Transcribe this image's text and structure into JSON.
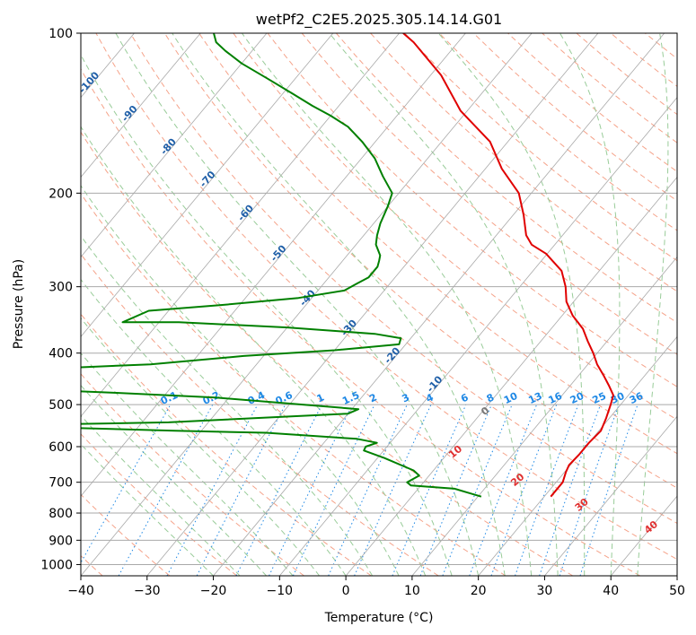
{
  "chart_data": {
    "type": "line",
    "title": "wetPf2_C2E5.2025.305.14.14.G01",
    "xlabel": "Temperature (°C)",
    "ylabel": "Pressure (hPa)",
    "xlim": [
      -40,
      50
    ],
    "ylim": [
      1050,
      100
    ],
    "x_ticks": [
      -40,
      -30,
      -20,
      -10,
      0,
      10,
      20,
      30,
      40,
      50
    ],
    "x_tick_labels": [
      "−40",
      "−30",
      "−20",
      "−10",
      "0",
      "10",
      "20",
      "30",
      "40",
      "50"
    ],
    "y_ticks": [
      1000,
      900,
      800,
      700,
      600,
      500,
      400,
      300,
      200,
      100
    ],
    "y_tick_labels": [
      "1000",
      "900",
      "800",
      "700",
      "600",
      "500",
      "400",
      "300",
      "200",
      "100"
    ],
    "skew_factor": 0.83,
    "series": [
      {
        "name": "temperature",
        "color": "#e00000",
        "points": [
          [
            21.0,
            745
          ],
          [
            21.0,
            700
          ],
          [
            20.2,
            670
          ],
          [
            19.8,
            650
          ],
          [
            20.0,
            620
          ],
          [
            20.0,
            590
          ],
          [
            20.3,
            560
          ],
          [
            19.5,
            530
          ],
          [
            18.5,
            500
          ],
          [
            17.7,
            480
          ],
          [
            15.8,
            460
          ],
          [
            13.7,
            440
          ],
          [
            11.4,
            420
          ],
          [
            9.4,
            400
          ],
          [
            7.1,
            380
          ],
          [
            4.8,
            360
          ],
          [
            1.6,
            340
          ],
          [
            -1.1,
            320
          ],
          [
            -3.1,
            300
          ],
          [
            -5.7,
            280
          ],
          [
            -10.2,
            260
          ],
          [
            -13.5,
            250
          ],
          [
            -15.5,
            240
          ],
          [
            -18.4,
            220
          ],
          [
            -21.9,
            200
          ],
          [
            -27.5,
            180
          ],
          [
            -32.7,
            160
          ],
          [
            -41.0,
            140
          ],
          [
            -48.4,
            120
          ],
          [
            -56.7,
            104
          ],
          [
            -59.4,
            100
          ]
        ]
      },
      {
        "name": "dewpoint",
        "color": "#008000",
        "points": [
          [
            10.5,
            745
          ],
          [
            8.5,
            735
          ],
          [
            5.5,
            720
          ],
          [
            -1.5,
            710
          ],
          [
            -2.5,
            700
          ],
          [
            -1.5,
            680
          ],
          [
            -3.0,
            665
          ],
          [
            -9.0,
            630
          ],
          [
            -13.0,
            610
          ],
          [
            -13.2,
            600
          ],
          [
            -12.0,
            590
          ],
          [
            -15.5,
            580
          ],
          [
            -30.0,
            565
          ],
          [
            -44.0,
            560
          ],
          [
            -62.0,
            552
          ],
          [
            -64.0,
            545
          ],
          [
            -46.0,
            540
          ],
          [
            -20.0,
            520
          ],
          [
            -19.0,
            510
          ],
          [
            -28.0,
            500
          ],
          [
            -42.0,
            485
          ],
          [
            -58.0,
            475
          ],
          [
            -67.0,
            470
          ],
          [
            -71.0,
            428
          ],
          [
            -56.0,
            420
          ],
          [
            -43.0,
            405
          ],
          [
            -30.0,
            395
          ],
          [
            -21.0,
            385
          ],
          [
            -21.5,
            375
          ],
          [
            -26.0,
            368
          ],
          [
            -40.0,
            358
          ],
          [
            -57.0,
            350
          ],
          [
            -65.5,
            350
          ],
          [
            -63.0,
            333
          ],
          [
            -53.0,
            325
          ],
          [
            -42.0,
            315
          ],
          [
            -36.0,
            305
          ],
          [
            -35.0,
            296
          ],
          [
            -34.0,
            288
          ],
          [
            -34.0,
            275
          ],
          [
            -34.5,
            268
          ],
          [
            -35.0,
            262
          ],
          [
            -37.0,
            250
          ],
          [
            -38.0,
            240
          ],
          [
            -39.0,
            228
          ],
          [
            -40.0,
            212
          ],
          [
            -41.0,
            200
          ],
          [
            -44.5,
            186
          ],
          [
            -48.0,
            172
          ],
          [
            -52.0,
            160
          ],
          [
            -56.0,
            150
          ],
          [
            -60.0,
            143
          ],
          [
            -64.0,
            137
          ],
          [
            -68.5,
            130
          ],
          [
            -74.0,
            122
          ],
          [
            -80.0,
            114
          ],
          [
            -84.0,
            108
          ],
          [
            -86.5,
            104
          ],
          [
            -88.0,
            100
          ]
        ]
      }
    ],
    "mixing_ratio_labels": [
      "0.1",
      "0.2",
      "0.4",
      "0.6",
      "1",
      "1.5",
      "2",
      "3",
      "4",
      "6",
      "8",
      "10",
      "13",
      "16",
      "20",
      "25",
      "30",
      "36"
    ],
    "dry_adiabat_labels": [
      "-100",
      "-90",
      "-80",
      "-70",
      "-60",
      "-50",
      "-40",
      "-30",
      "-20",
      "-10"
    ],
    "moist_adiabat_labels": [
      "0",
      "10",
      "20",
      "30",
      "40"
    ],
    "colors": {
      "isotherm": "#a9a9a9",
      "isobar": "#a9a9a9",
      "dry_adiabat": "#f5a38a",
      "moist_adiabat": "#99cc99",
      "mixing_ratio": "#1e88e5",
      "mixing_label": "#1e88e5",
      "dry_label": "#1f5fa8",
      "moist_label": "#e03030",
      "moist_label_zero": "#777777",
      "temperature": "#e00000",
      "dewpoint": "#008000"
    }
  }
}
